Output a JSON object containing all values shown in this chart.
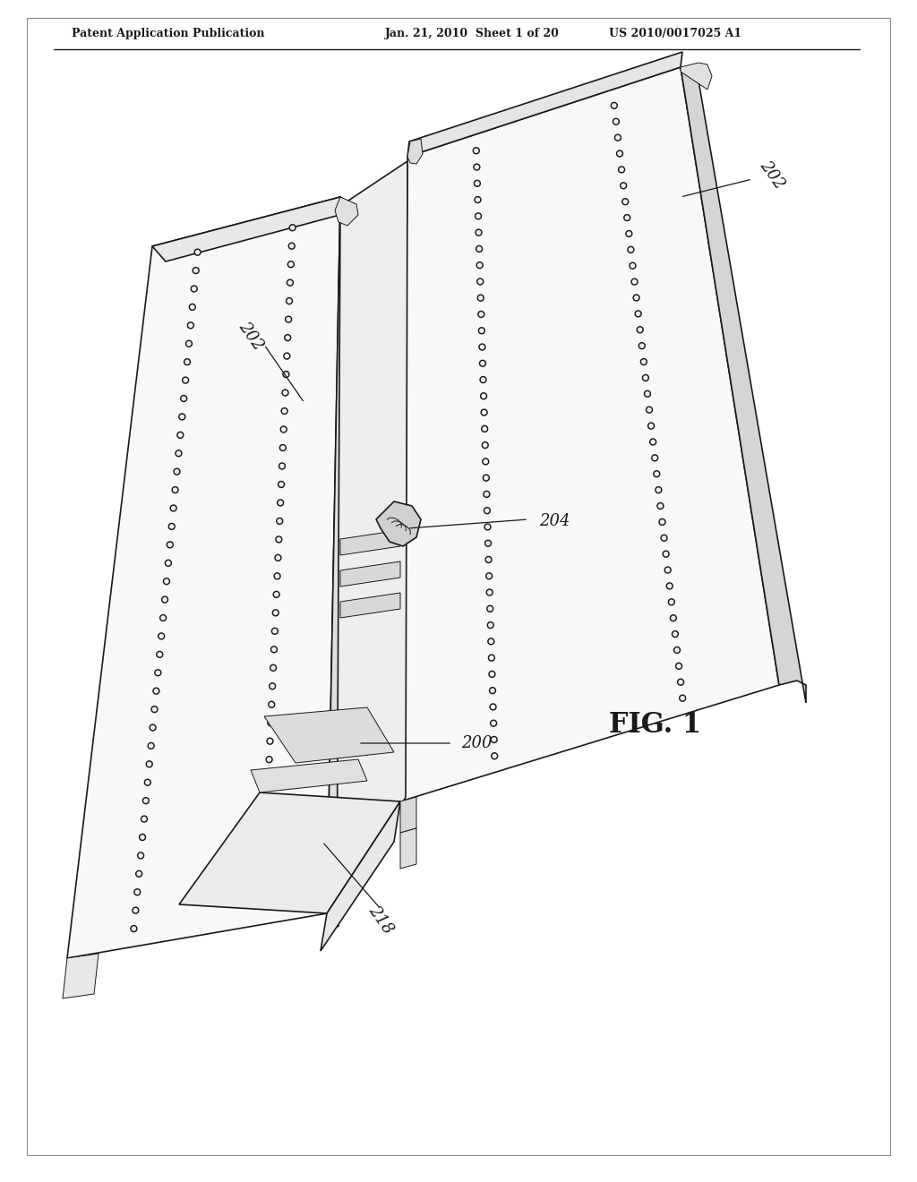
{
  "bg_color": "#ffffff",
  "header_left": "Patent Application Publication",
  "header_mid": "Jan. 21, 2010  Sheet 1 of 20",
  "header_right": "US 2010/0017025 A1",
  "fig_label": "FIG. 1",
  "ref_numbers": [
    "202",
    "202",
    "204",
    "200",
    "218"
  ],
  "line_color": "#1a1a1a",
  "light_gray": "#cccccc",
  "mid_gray": "#999999"
}
